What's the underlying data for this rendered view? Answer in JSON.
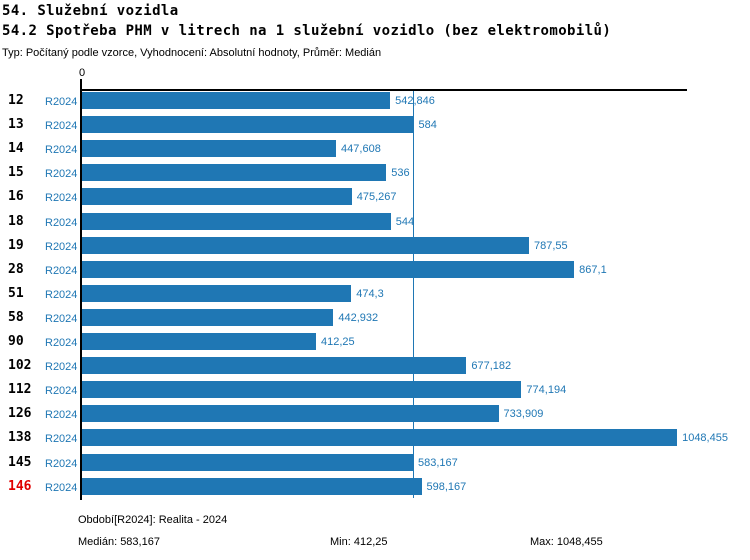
{
  "header": {
    "title": "54. Služební vozidla",
    "subtitle": "54.2 Spotřeba PHM v litrech na 1 služební vozidlo (bez elektromobilů)",
    "meta": "Typ: Počítaný podle vzorce, Vyhodnocení: Absolutní hodnoty, Průměr: Medián"
  },
  "chart_data": {
    "type": "bar",
    "orientation": "horizontal",
    "title": "54.2 Spotřeba PHM v litrech na 1 služební vozidlo (bez elektromobilů)",
    "xlabel": "",
    "ylabel": "",
    "axis_zero_label": "0",
    "series_name": "R2024",
    "categories": [
      "12",
      "13",
      "14",
      "15",
      "16",
      "18",
      "19",
      "28",
      "51",
      "58",
      "90",
      "102",
      "112",
      "126",
      "138",
      "145",
      "146"
    ],
    "values": [
      542.846,
      584,
      447.608,
      536,
      475.267,
      544,
      787.55,
      867.1,
      474.3,
      442.932,
      412.25,
      677.182,
      774.194,
      733.909,
      1048.455,
      583.167,
      598.167
    ],
    "value_labels": [
      "542,846",
      "584",
      "447,608",
      "536",
      "475,267",
      "544",
      "787,55",
      "867,1",
      "474,3",
      "442,932",
      "412,25",
      "677,182",
      "774,194",
      "733,909",
      "1048,455",
      "583,167",
      "598,167"
    ],
    "highlighted_category": "146",
    "median": 583.167,
    "min": 412.25,
    "max": 1048.455,
    "median_line": true,
    "grid": false,
    "legend": false,
    "colors": {
      "bar": "#1f77b4",
      "label_text": "#1f77b4",
      "category_text": "#000000",
      "highlight_category_text": "#e00000",
      "axis": "#000000",
      "median_line": "#1f77b4"
    }
  },
  "footer": {
    "period": "Období[R2024]: Realita - 2024",
    "median_label": "Medián: 583,167",
    "min_label": "Min: 412,25",
    "max_label": "Max: 1048,455"
  }
}
